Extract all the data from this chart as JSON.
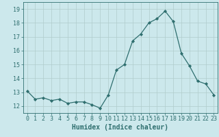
{
  "x": [
    0,
    1,
    2,
    3,
    4,
    5,
    6,
    7,
    8,
    9,
    10,
    11,
    12,
    13,
    14,
    15,
    16,
    17,
    18,
    19,
    20,
    21,
    22,
    23
  ],
  "y": [
    13.1,
    12.5,
    12.6,
    12.4,
    12.5,
    12.2,
    12.3,
    12.3,
    12.1,
    11.85,
    12.8,
    14.6,
    15.0,
    16.7,
    17.2,
    18.0,
    18.3,
    18.85,
    18.1,
    15.8,
    14.9,
    13.8,
    13.6,
    12.8
  ],
  "line_color": "#2e6e6e",
  "marker": "D",
  "marker_size": 2.2,
  "bg_color": "#cce8ec",
  "grid_color": "#b0cccc",
  "xlabel": "Humidex (Indice chaleur)",
  "xlim": [
    -0.5,
    23.5
  ],
  "ylim": [
    11.5,
    19.5
  ],
  "yticks": [
    12,
    13,
    14,
    15,
    16,
    17,
    18,
    19
  ],
  "xticks": [
    0,
    1,
    2,
    3,
    4,
    5,
    6,
    7,
    8,
    9,
    10,
    11,
    12,
    13,
    14,
    15,
    16,
    17,
    18,
    19,
    20,
    21,
    22,
    23
  ],
  "tick_label_fontsize": 6.0,
  "xlabel_fontsize": 7.0
}
